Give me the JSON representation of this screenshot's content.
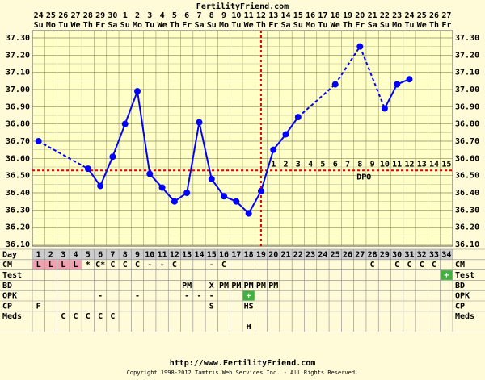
{
  "chart_data": {
    "type": "line",
    "title": "FertilityFriend.com",
    "url": "http://www.FertilityFriend.com",
    "copyright": "Copyright 1998-2012 Tamtris Web Services Inc. - All Rights Reserved.",
    "x": [
      1,
      2,
      3,
      4,
      5,
      6,
      7,
      8,
      9,
      10,
      11,
      12,
      13,
      14,
      15,
      16,
      17,
      18,
      19,
      20,
      21,
      22,
      23,
      24,
      25,
      26,
      27,
      28,
      29,
      30,
      31,
      32,
      33,
      34
    ],
    "x_label": "Day",
    "dates": [
      24,
      25,
      26,
      27,
      28,
      29,
      30,
      1,
      2,
      3,
      4,
      5,
      6,
      7,
      8,
      9,
      10,
      11,
      12,
      13,
      14,
      15,
      16,
      17,
      18,
      19,
      20,
      21,
      22,
      23,
      24,
      25,
      26,
      27
    ],
    "weekdays": [
      "Su",
      "Mo",
      "Tu",
      "We",
      "Th",
      "Fr",
      "Sa",
      "Su",
      "Mo",
      "Tu",
      "We",
      "Th",
      "Fr",
      "Sa",
      "Su",
      "Mo",
      "Tu",
      "We",
      "Th",
      "Fr",
      "Sa",
      "Su",
      "Mo",
      "Tu",
      "We",
      "Th",
      "Fr",
      "Sa",
      "Su",
      "Mo",
      "Tu",
      "We",
      "Th",
      "Fr"
    ],
    "series": [
      {
        "color": "#0000ff",
        "values": [
          36.7,
          null,
          null,
          null,
          36.54,
          36.44,
          36.61,
          36.8,
          36.99,
          36.51,
          36.43,
          36.35,
          36.4,
          36.81,
          36.48,
          36.38,
          36.35,
          36.28,
          36.41,
          36.65,
          36.74,
          36.84,
          null,
          null,
          37.03,
          null,
          37.25,
          null,
          36.89,
          37.03,
          37.06,
          null,
          null,
          null
        ]
      }
    ],
    "ylim": [
      36.1,
      37.3
    ],
    "yticks": [
      {
        "value": 36.1,
        "label": "36.10"
      },
      {
        "value": 36.2,
        "label": "36.20"
      },
      {
        "value": 36.3,
        "label": "36.30"
      },
      {
        "value": 36.4,
        "label": "36.40"
      },
      {
        "value": 36.5,
        "label": "36.50"
      },
      {
        "value": 36.6,
        "label": "36.60"
      },
      {
        "value": 36.7,
        "label": "36.70"
      },
      {
        "value": 36.8,
        "label": "36.80"
      },
      {
        "value": 36.9,
        "label": "36.90"
      },
      {
        "value": 37.0,
        "label": "37.00"
      },
      {
        "value": 37.1,
        "label": "37.10"
      },
      {
        "value": 37.2,
        "label": "37.20"
      },
      {
        "value": 37.3,
        "label": "37.30"
      }
    ],
    "grid": true,
    "coverline": 36.53,
    "ovulation_day": 19,
    "line_color": "#e00000",
    "dpo": [
      1,
      2,
      3,
      4,
      5,
      6,
      7,
      8,
      9,
      10,
      11,
      12,
      13,
      14,
      15
    ],
    "dpo_label": "DPO",
    "cell_fill": {
      "L": "#f0a0b0",
      "+": "#40b040"
    },
    "rows": [
      {
        "label": "CM",
        "cells": [
          "L",
          "L",
          "L",
          "L",
          "*",
          "C*",
          "C",
          "C",
          "C",
          "-",
          "-",
          "C",
          null,
          null,
          "-",
          "C",
          null,
          null,
          null,
          null,
          null,
          null,
          null,
          null,
          null,
          null,
          null,
          "C",
          null,
          "C",
          "C",
          "C",
          "C",
          null
        ]
      },
      {
        "label": "Test",
        "cells": [
          null,
          null,
          null,
          null,
          null,
          null,
          null,
          null,
          null,
          null,
          null,
          null,
          null,
          null,
          null,
          null,
          null,
          null,
          null,
          null,
          null,
          null,
          null,
          null,
          null,
          null,
          null,
          null,
          null,
          null,
          null,
          null,
          null,
          "+"
        ]
      },
      {
        "label": "BD",
        "cells": [
          null,
          null,
          null,
          null,
          null,
          null,
          null,
          null,
          null,
          null,
          null,
          null,
          "PM",
          null,
          "X",
          "PM",
          "PM",
          "PM",
          "PM",
          "PM",
          null,
          null,
          null,
          null,
          null,
          null,
          null,
          null,
          null,
          null,
          null,
          null,
          null,
          null
        ]
      },
      {
        "label": "OPK",
        "cells": [
          null,
          null,
          null,
          null,
          null,
          "-",
          null,
          null,
          "-",
          null,
          null,
          null,
          "-",
          "-",
          "-",
          null,
          null,
          "+",
          null,
          null,
          null,
          null,
          null,
          null,
          null,
          null,
          null,
          null,
          null,
          null,
          null,
          null,
          null,
          null
        ]
      },
      {
        "label": "CP",
        "cells": [
          "F",
          null,
          null,
          null,
          null,
          null,
          null,
          null,
          null,
          null,
          null,
          null,
          null,
          null,
          "S",
          null,
          null,
          "HS",
          null,
          null,
          null,
          null,
          null,
          null,
          null,
          null,
          null,
          null,
          null,
          null,
          null,
          null,
          null,
          null
        ]
      },
      {
        "label": "Meds",
        "cells": [
          null,
          null,
          "C",
          "C",
          "C",
          "C",
          "C",
          null,
          null,
          null,
          null,
          null,
          null,
          null,
          null,
          null,
          null,
          null,
          null,
          null,
          null,
          null,
          null,
          null,
          null,
          null,
          null,
          null,
          null,
          null,
          null,
          null,
          null,
          null
        ]
      },
      {
        "label": null,
        "cells": [
          null,
          null,
          null,
          null,
          null,
          null,
          null,
          null,
          null,
          null,
          null,
          null,
          null,
          null,
          null,
          null,
          null,
          "H",
          null,
          null,
          null,
          null,
          null,
          null,
          null,
          null,
          null,
          null,
          null,
          null,
          null,
          null,
          null,
          null
        ]
      }
    ]
  }
}
